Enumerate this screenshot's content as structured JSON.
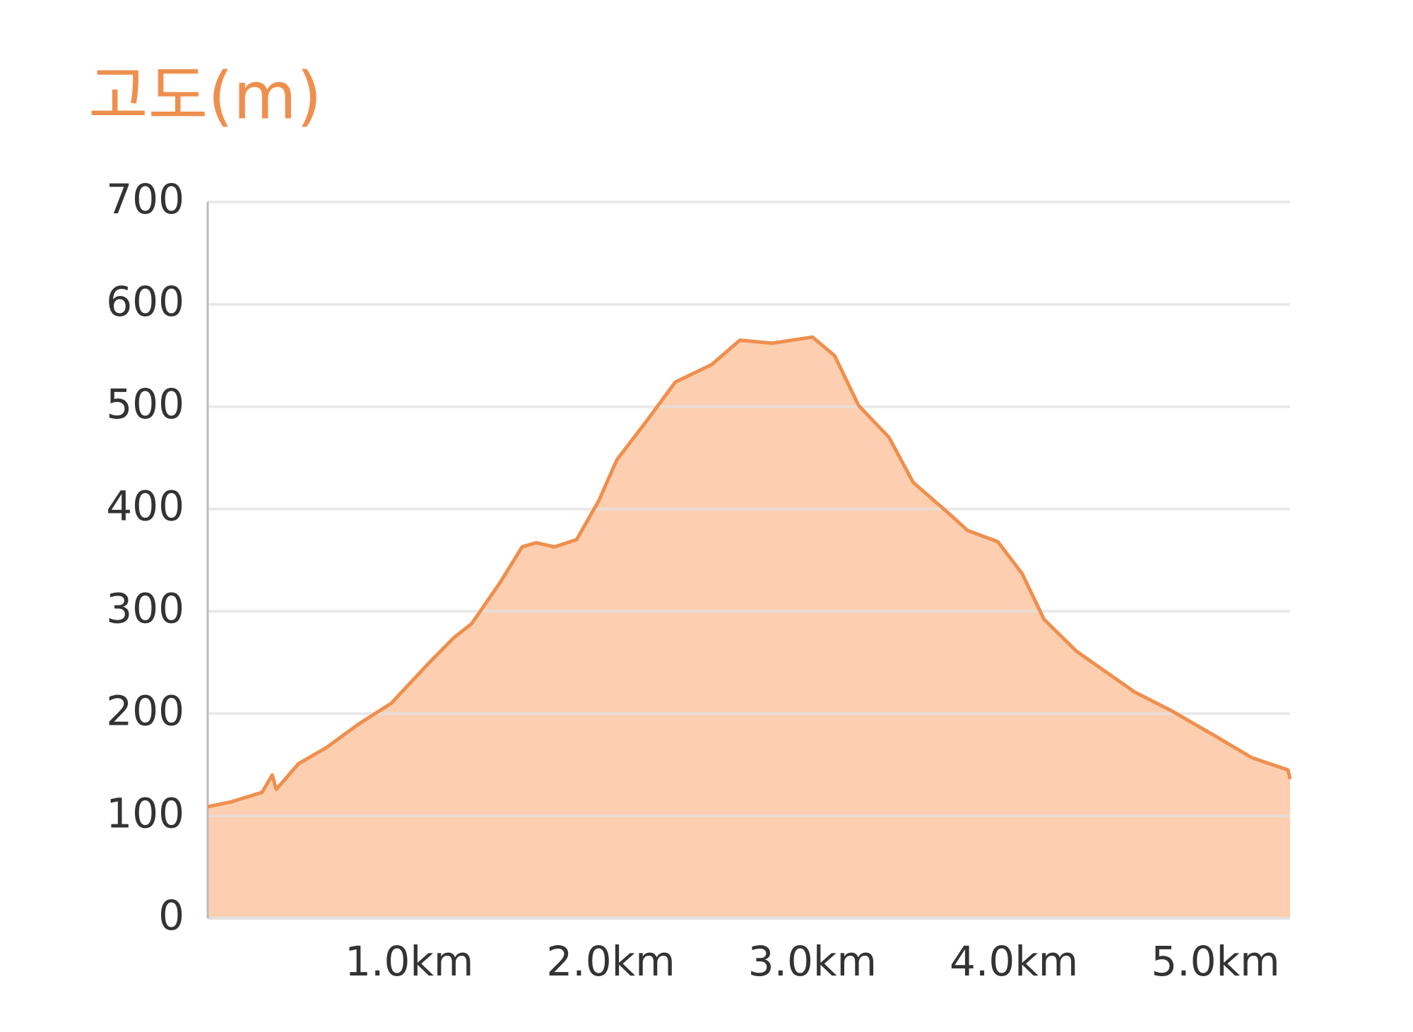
{
  "chart_data": {
    "type": "area",
    "title": "고도(m)",
    "x": [
      0,
      0.12,
      0.27,
      0.32,
      0.34,
      0.45,
      0.59,
      0.75,
      0.91,
      1.09,
      1.22,
      1.31,
      1.45,
      1.56,
      1.63,
      1.72,
      1.83,
      1.94,
      2.03,
      2.17,
      2.32,
      2.5,
      2.64,
      2.8,
      3.0,
      3.11,
      3.23,
      3.38,
      3.5,
      3.68,
      3.77,
      3.92,
      4.04,
      4.15,
      4.31,
      4.6,
      4.78,
      5.0,
      5.18,
      5.36,
      5.37
    ],
    "values": [
      109,
      114,
      123,
      140,
      126,
      151,
      167,
      190,
      210,
      248,
      274,
      288,
      328,
      363,
      367,
      363,
      370,
      408,
      448,
      484,
      524,
      541,
      565,
      562,
      568,
      550,
      501,
      470,
      426,
      395,
      379,
      368,
      337,
      292,
      261,
      221,
      203,
      178,
      157,
      145,
      136
    ],
    "color": "#ef8f4e",
    "fill": "#fdcfb0",
    "xlim": [
      0,
      5.37
    ],
    "xticks": [
      {
        "value": 1,
        "label": "1.0km"
      },
      {
        "value": 2,
        "label": "2.0km"
      },
      {
        "value": 3,
        "label": "3.0km"
      },
      {
        "value": 4,
        "label": "4.0km"
      },
      {
        "value": 5,
        "label": "5.0km"
      }
    ],
    "ylim": [
      0,
      700
    ],
    "yticks": [
      0,
      100,
      200,
      300,
      400,
      500,
      600,
      700
    ],
    "grid": true
  }
}
